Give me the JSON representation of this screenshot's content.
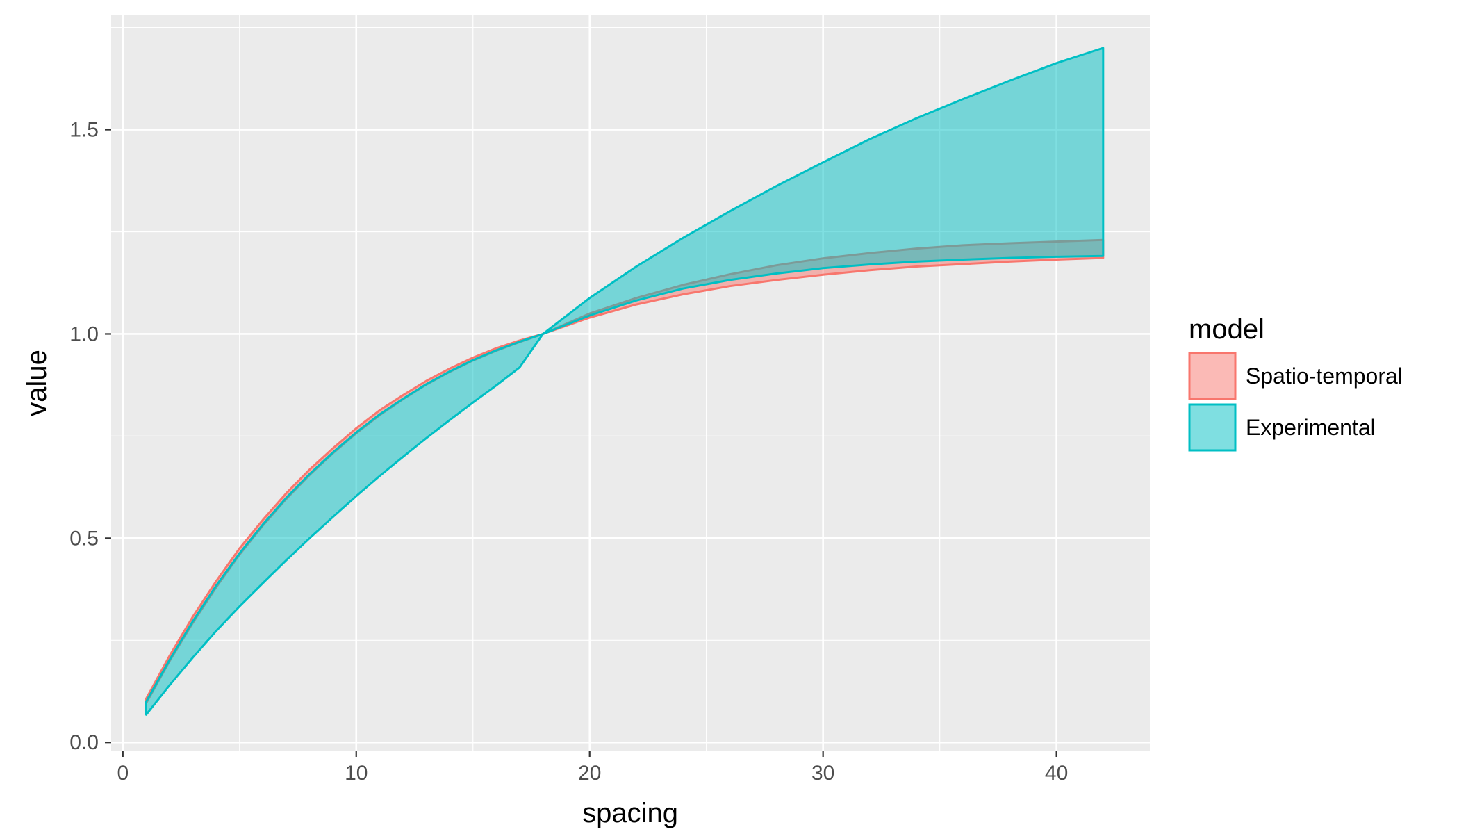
{
  "chart_data": {
    "type": "area",
    "title": "",
    "xlabel": "spacing",
    "ylabel": "value",
    "xlim": [
      -0.5,
      44
    ],
    "ylim": [
      -0.02,
      1.78
    ],
    "x_ticks": [
      0,
      10,
      20,
      30,
      40
    ],
    "x_tick_labels": [
      "0",
      "10",
      "20",
      "30",
      "40"
    ],
    "y_ticks": [
      0.0,
      0.5,
      1.0,
      1.5
    ],
    "y_tick_labels": [
      "0.0",
      "0.5",
      "1.0",
      "1.5"
    ],
    "grid": true,
    "legend": {
      "title": "model",
      "position": "right"
    },
    "series": [
      {
        "name": "Spatio-temporal",
        "color": "#F8766D",
        "x": [
          1,
          2,
          3,
          4,
          5,
          6,
          7,
          8,
          9,
          10,
          11,
          12,
          13,
          14,
          15,
          16,
          17,
          18,
          20,
          22,
          24,
          26,
          28,
          30,
          32,
          34,
          36,
          38,
          40,
          42
        ],
        "upper": [
          0.107,
          0.212,
          0.308,
          0.395,
          0.475,
          0.545,
          0.61,
          0.668,
          0.72,
          0.769,
          0.813,
          0.85,
          0.885,
          0.915,
          0.942,
          0.965,
          0.984,
          1.0,
          1.05,
          1.088,
          1.12,
          1.146,
          1.168,
          1.185,
          1.198,
          1.209,
          1.217,
          1.222,
          1.226,
          1.23
        ],
        "lower": [
          0.096,
          0.199,
          0.293,
          0.38,
          0.46,
          0.531,
          0.596,
          0.655,
          0.708,
          0.757,
          0.801,
          0.84,
          0.876,
          0.907,
          0.935,
          0.959,
          0.98,
          1.0,
          1.04,
          1.072,
          1.097,
          1.117,
          1.132,
          1.145,
          1.156,
          1.165,
          1.171,
          1.177,
          1.182,
          1.186
        ]
      },
      {
        "name": "Experimental",
        "color": "#00BFC4",
        "x": [
          1,
          2,
          3,
          4,
          5,
          6,
          7,
          8,
          9,
          10,
          11,
          12,
          13,
          14,
          15,
          16,
          17,
          18,
          20,
          22,
          24,
          26,
          28,
          30,
          32,
          34,
          36,
          38,
          40,
          42
        ],
        "upper": [
          0.1,
          0.202,
          0.297,
          0.384,
          0.463,
          0.534,
          0.599,
          0.657,
          0.71,
          0.759,
          0.803,
          0.841,
          0.877,
          0.908,
          0.936,
          0.96,
          0.981,
          1.0,
          1.088,
          1.165,
          1.235,
          1.3,
          1.362,
          1.42,
          1.477,
          1.528,
          1.575,
          1.62,
          1.663,
          1.7
        ],
        "lower": [
          0.068,
          0.14,
          0.208,
          0.273,
          0.333,
          0.39,
          0.446,
          0.5,
          0.552,
          0.603,
          0.652,
          0.699,
          0.745,
          0.789,
          0.832,
          0.874,
          0.918,
          1.0,
          1.045,
          1.082,
          1.111,
          1.132,
          1.148,
          1.161,
          1.17,
          1.177,
          1.182,
          1.186,
          1.189,
          1.191
        ]
      }
    ]
  }
}
